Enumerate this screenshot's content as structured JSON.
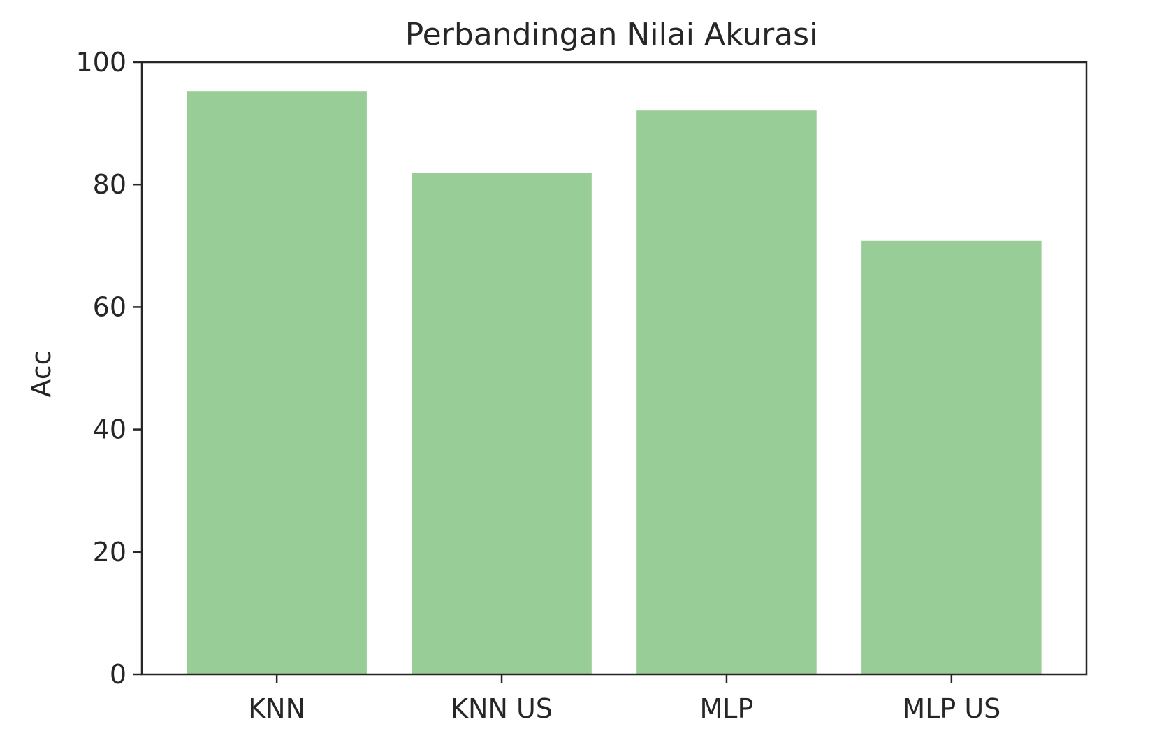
{
  "chart_data": {
    "type": "bar",
    "title": "Perbandingan Nilai Akurasi",
    "xlabel": "",
    "ylabel": "Acc",
    "categories": [
      "KNN",
      "KNN US",
      "MLP",
      "MLP US"
    ],
    "values": [
      95.3,
      81.9,
      92.1,
      70.8
    ],
    "ylim": [
      0,
      100
    ],
    "yticks": [
      0,
      20,
      40,
      60,
      80,
      100
    ],
    "ytick_labels": [
      "0",
      "20",
      "40",
      "60",
      "80",
      "100"
    ],
    "bar_color": "#99cd97",
    "axis_color": "#262626",
    "grid": false,
    "legend": "none"
  }
}
